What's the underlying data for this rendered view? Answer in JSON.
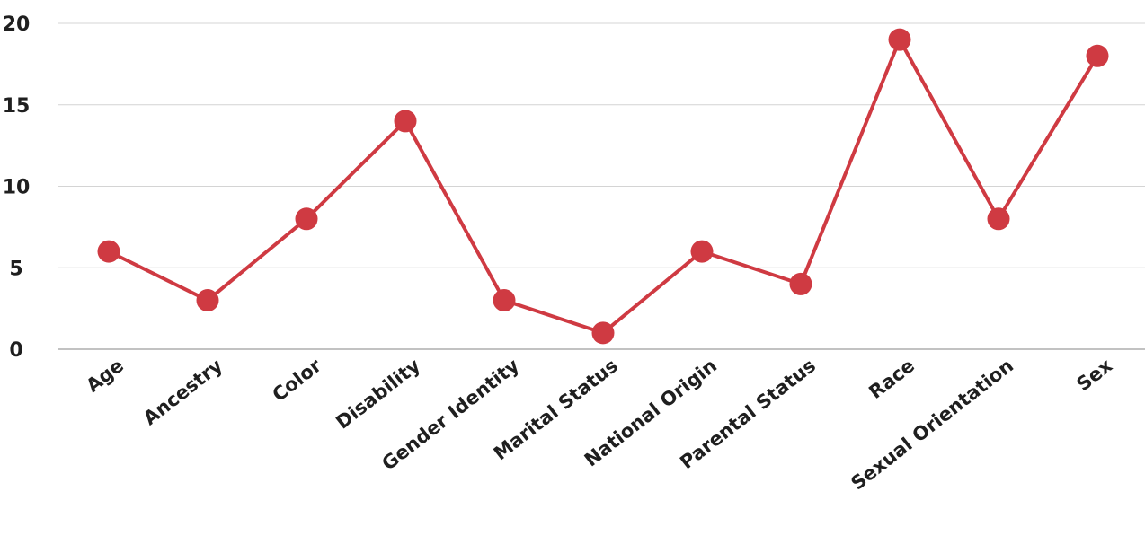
{
  "chart_data": {
    "type": "line",
    "title": "",
    "xlabel": "",
    "ylabel": "",
    "categories": [
      "Age",
      "Ancestry",
      "Color",
      "Disability",
      "Gender Identity",
      "Marital Status",
      "National Origin",
      "Parental Status",
      "Race",
      "Sexual Orientation",
      "Sex"
    ],
    "series": [
      {
        "values": [
          6,
          3,
          8,
          14,
          3,
          1,
          6,
          4,
          19,
          8,
          18
        ],
        "color": "#cf3a42"
      }
    ],
    "ylim": [
      0,
      20
    ],
    "yticks": [
      "0",
      "5",
      "10",
      "15",
      "20"
    ],
    "grid": true,
    "legend": "none",
    "colors": {
      "line": "#cf3a42",
      "grid": "#d4d4d4",
      "axis": "#9e9e9e",
      "text": "#1f1f1f"
    }
  }
}
